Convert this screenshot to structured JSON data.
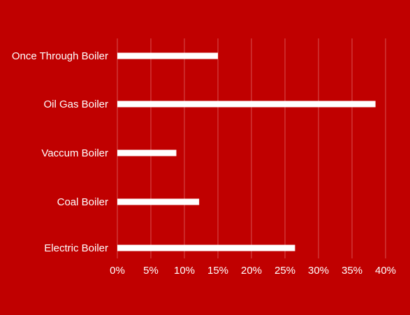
{
  "chart_data": {
    "type": "bar",
    "orientation": "horizontal",
    "categories": [
      "Once Through Boiler",
      "Oil Gas Boiler",
      "Vaccum Boiler",
      "Coal Boiler",
      "Electric Boiler"
    ],
    "values": [
      15,
      38.5,
      8.8,
      12.2,
      26.5
    ],
    "value_unit": "%",
    "xlim": [
      0,
      40
    ],
    "xticks": [
      "0%",
      "5%",
      "10%",
      "15%",
      "20%",
      "25%",
      "30%",
      "35%",
      "40%"
    ],
    "title": "",
    "xlabel": "",
    "ylabel": "",
    "grid": true,
    "legend": "none",
    "colors": {
      "background": "#c00000",
      "bar": "#ffffff",
      "gridline": "#d95050",
      "text": "#ffffff"
    }
  }
}
